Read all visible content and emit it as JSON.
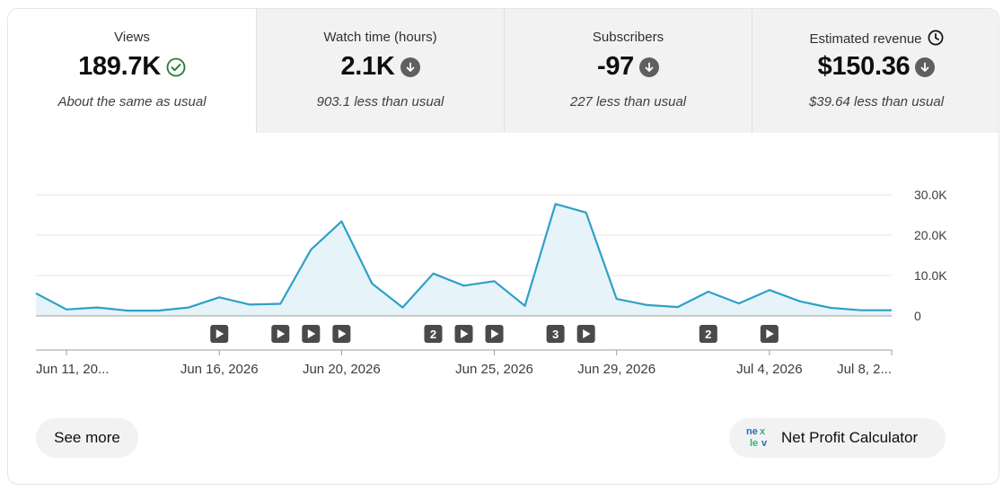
{
  "metrics": [
    {
      "label": "Views",
      "value": "189.7K",
      "comparison": "About the same as usual",
      "indicator": "check-circle-icon"
    },
    {
      "label": "Watch time (hours)",
      "value": "2.1K",
      "comparison": "903.1 less than usual",
      "indicator": "arrow-down-circle-icon"
    },
    {
      "label": "Subscribers",
      "value": "-97",
      "comparison": "227 less than usual",
      "indicator": "arrow-down-circle-icon"
    },
    {
      "label": "Estimated revenue",
      "value": "$150.36",
      "comparison": "$39.64 less than usual",
      "indicator": "arrow-down-circle-icon",
      "label_icon": "clock-icon"
    }
  ],
  "chart_data": {
    "type": "area",
    "x": [
      "Jun 10",
      "Jun 11",
      "Jun 12",
      "Jun 13",
      "Jun 14",
      "Jun 15",
      "Jun 16",
      "Jun 17",
      "Jun 18",
      "Jun 19",
      "Jun 20",
      "Jun 21",
      "Jun 22",
      "Jun 23",
      "Jun 24",
      "Jun 25",
      "Jun 26",
      "Jun 27",
      "Jun 28",
      "Jun 29",
      "Jun 30",
      "Jul 1",
      "Jul 2",
      "Jul 3",
      "Jul 4",
      "Jul 5",
      "Jul 6",
      "Jul 7",
      "Jul 8"
    ],
    "series": [
      {
        "values": [
          5600,
          1600,
          2100,
          1300,
          1300,
          2100,
          4600,
          2800,
          3000,
          16400,
          23400,
          8000,
          2100,
          10500,
          7500,
          8600,
          2500,
          27700,
          25600,
          4200,
          2700,
          2200,
          6000,
          3100,
          6400,
          3600,
          2000,
          1400,
          1400
        ]
      }
    ],
    "ylim": [
      0,
      30000
    ],
    "y_ticks": [
      "30.0K",
      "20.0K",
      "10.0K",
      "0"
    ],
    "x_tick_labels": [
      {
        "index": 1,
        "label": "Jun 11, 20..."
      },
      {
        "index": 6,
        "label": "Jun 16, 2026"
      },
      {
        "index": 10,
        "label": "Jun 20, 2026"
      },
      {
        "index": 15,
        "label": "Jun 25, 2026"
      },
      {
        "index": 19,
        "label": "Jun 29, 2026"
      },
      {
        "index": 24,
        "label": "Jul 4, 2026"
      },
      {
        "index": 28,
        "label": "Jul 8, 2..."
      }
    ],
    "upload_markers": [
      {
        "index": 6,
        "label": "play"
      },
      {
        "index": 8,
        "label": "play"
      },
      {
        "index": 9,
        "label": "play"
      },
      {
        "index": 10,
        "label": "play"
      },
      {
        "index": 13,
        "label": "2"
      },
      {
        "index": 14,
        "label": "play"
      },
      {
        "index": 15,
        "label": "play"
      },
      {
        "index": 17,
        "label": "3"
      },
      {
        "index": 18,
        "label": "play"
      },
      {
        "index": 22,
        "label": "2"
      },
      {
        "index": 24,
        "label": "play"
      }
    ],
    "grid": true,
    "line_color": "#2ea0c8",
    "fill_color": "#e6f4fa"
  },
  "actions": {
    "see_more": "See more",
    "net_profit_calculator": "Net Profit Calculator"
  }
}
